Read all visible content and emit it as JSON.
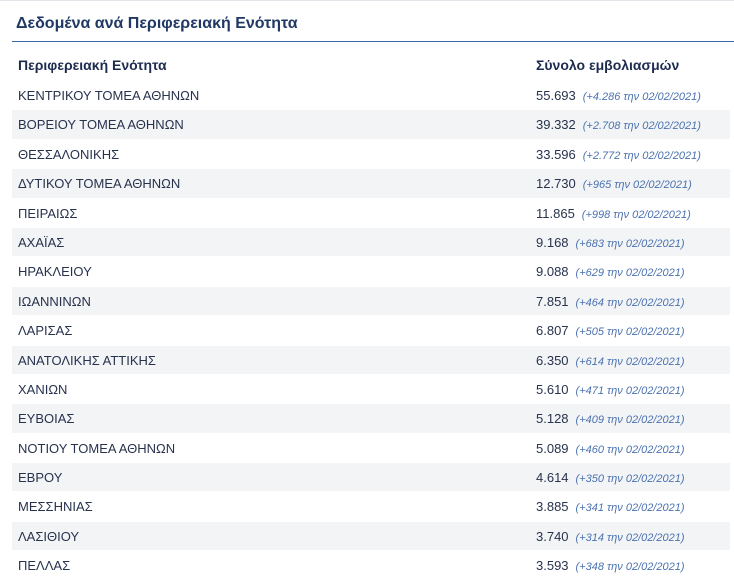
{
  "header": {
    "title": "Δεδομένα ανά Περιφερειακή Ενότητα"
  },
  "table": {
    "columns": {
      "region": "Περιφερειακή Ενότητα",
      "total": "Σύνολο εμβολιασμών"
    },
    "rows": [
      {
        "region": "ΚΕΝΤΡΙΚΟΥ ΤΟΜΕΑ ΑΘΗΝΩΝ",
        "total": "55.693",
        "delta": "(+4.286 την 02/02/2021)"
      },
      {
        "region": "ΒΟΡΕΙΟΥ ΤΟΜΕΑ ΑΘΗΝΩΝ",
        "total": "39.332",
        "delta": "(+2.708 την 02/02/2021)"
      },
      {
        "region": "ΘΕΣΣΑΛΟΝΙΚΗΣ",
        "total": "33.596",
        "delta": "(+2.772 την 02/02/2021)"
      },
      {
        "region": "ΔΥΤΙΚΟΥ ΤΟΜΕΑ ΑΘΗΝΩΝ",
        "total": "12.730",
        "delta": "(+965 την 02/02/2021)"
      },
      {
        "region": "ΠΕΙΡΑΙΩΣ",
        "total": "11.865",
        "delta": "(+998 την 02/02/2021)"
      },
      {
        "region": "ΑΧΑΪΑΣ",
        "total": "9.168",
        "delta": "(+683 την 02/02/2021)"
      },
      {
        "region": "ΗΡΑΚΛΕΙΟΥ",
        "total": "9.088",
        "delta": "(+629 την 02/02/2021)"
      },
      {
        "region": "ΙΩΑΝΝΙΝΩΝ",
        "total": "7.851",
        "delta": "(+464 την 02/02/2021)"
      },
      {
        "region": "ΛΑΡΙΣΑΣ",
        "total": "6.807",
        "delta": "(+505 την 02/02/2021)"
      },
      {
        "region": "ΑΝΑΤΟΛΙΚΗΣ ΑΤΤΙΚΗΣ",
        "total": "6.350",
        "delta": "(+614 την 02/02/2021)"
      },
      {
        "region": "ΧΑΝΙΩΝ",
        "total": "5.610",
        "delta": "(+471 την 02/02/2021)"
      },
      {
        "region": "ΕΥΒΟΙΑΣ",
        "total": "5.128",
        "delta": "(+409 την 02/02/2021)"
      },
      {
        "region": "ΝΟΤΙΟΥ ΤΟΜΕΑ ΑΘΗΝΩΝ",
        "total": "5.089",
        "delta": "(+460 την 02/02/2021)"
      },
      {
        "region": "ΕΒΡΟΥ",
        "total": "4.614",
        "delta": "(+350 την 02/02/2021)"
      },
      {
        "region": "ΜΕΣΣΗΝΙΑΣ",
        "total": "3.885",
        "delta": "(+341 την 02/02/2021)"
      },
      {
        "region": "ΛΑΣΙΘΙΟΥ",
        "total": "3.740",
        "delta": "(+314 την 02/02/2021)"
      },
      {
        "region": "ΠΕΛΛΑΣ",
        "total": "3.593",
        "delta": "(+348 την 02/02/2021)"
      }
    ]
  },
  "colors": {
    "title": "#1f3864",
    "rule": "#3a66a8",
    "delta": "#4a72b0",
    "alt_row": "#f3f4f6"
  }
}
